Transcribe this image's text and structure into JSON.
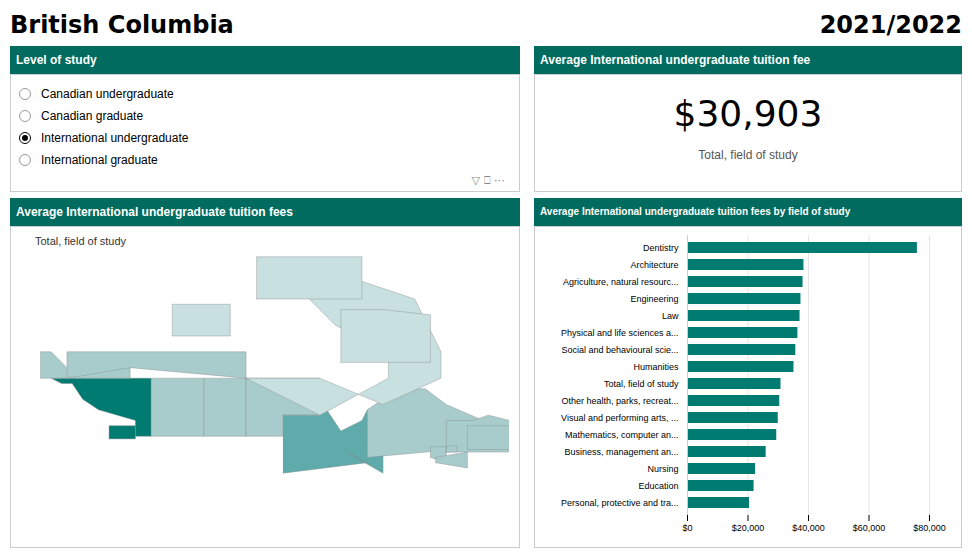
{
  "chart_data": [
    {
      "type": "header",
      "title": "British Columbia",
      "subtitle": "2021/2022"
    },
    {
      "type": "radio",
      "title": "Level of study",
      "categories": [
        "Canadian undergraduate",
        "Canadian graduate",
        "International undergraduate",
        "International graduate"
      ],
      "colors": [
        "#ffffff",
        "#ffffff",
        "#000000",
        "#ffffff"
      ],
      "annotations": [
        "▽  ⎕  ⋯"
      ]
    },
    {
      "type": "kpi",
      "title": "Average International undergraduate tuition fee",
      "values": [
        30903
      ],
      "value_labels": [
        "$30,903"
      ],
      "data_labels": true,
      "annotations": [
        "Total, field of study"
      ]
    },
    {
      "type": "map",
      "title": "Average International undergraduate tuition fees",
      "annotations": [
        "Total, field of study"
      ],
      "tick_labels": false,
      "xlim": [
        -145,
        -52
      ],
      "ylim": [
        41,
        84
      ],
      "series": [
        {
          "color": "#007B72",
          "x": [
            -139,
            -120,
            -120,
            -123,
            -123,
            -130,
            -133,
            -135,
            -137,
            -139
          ],
          "values": [
            60,
            60,
            49,
            49,
            52,
            54,
            56,
            59,
            59,
            60
          ]
        },
        {
          "color": "#A8CCCC",
          "x": [
            -120,
            -110,
            -110,
            -120,
            -120
          ],
          "values": [
            49,
            49,
            60,
            60,
            49
          ]
        },
        {
          "color": "#A8CCCC",
          "x": [
            -110,
            -102,
            -102,
            -110,
            -110
          ],
          "values": [
            49,
            49,
            60,
            60,
            49
          ]
        },
        {
          "color": "#A8CCCC",
          "x": [
            -102,
            -95,
            -95,
            -88,
            -88,
            -102,
            -102
          ],
          "values": [
            49,
            49,
            53,
            53,
            60,
            60,
            49
          ]
        },
        {
          "color": "#5FAAAA",
          "x": [
            -95,
            -88,
            -88,
            -84,
            -80,
            -79,
            -76,
            -76,
            -83,
            -79,
            -95
          ],
          "values": [
            53,
            53,
            56,
            50,
            52,
            54,
            46,
            42,
            46,
            44,
            42
          ]
        },
        {
          "color": "#A8CCCC",
          "x": [
            -79,
            -79,
            -73,
            -68,
            -64,
            -57,
            -57,
            -79
          ],
          "values": [
            45,
            54,
            58,
            58,
            55,
            52,
            47,
            45
          ]
        },
        {
          "color": "#A8CCCC",
          "x": [
            -67,
            -64,
            -64,
            -67,
            -67
          ],
          "values": [
            45,
            44,
            47,
            47,
            45
          ]
        },
        {
          "color": "#A8CCCC",
          "x": [
            -66,
            -60,
            -60,
            -66,
            -66
          ],
          "values": [
            44,
            43,
            46,
            45,
            44
          ]
        },
        {
          "color": "#A8CCCC",
          "x": [
            -64,
            -52,
            -52,
            -56,
            -59,
            -64,
            -64
          ],
          "values": [
            46,
            46,
            52,
            53,
            52,
            52,
            46
          ]
        },
        {
          "color": "#A8CCCC",
          "x": [
            -141,
            -124,
            -124,
            -136,
            -139,
            -141,
            -141
          ],
          "values": [
            60,
            60,
            62,
            62,
            65,
            65,
            60
          ]
        },
        {
          "color": "#A8CCCC",
          "x": [
            -136,
            -124,
            -124,
            -102,
            -102,
            -136,
            -136
          ],
          "values": [
            60,
            62,
            62,
            60,
            65,
            65,
            60
          ]
        },
        {
          "color": "#C8E0E0",
          "x": [
            -102,
            -88,
            -76,
            -65,
            -65,
            -70,
            -85,
            -90,
            -85,
            -75,
            -75,
            -88,
            -102,
            -102
          ],
          "values": [
            60,
            60,
            55,
            60,
            65,
            75,
            80,
            75,
            70,
            65,
            60,
            53,
            60,
            60
          ]
        },
        {
          "color": "#007B72",
          "x": [
            -128,
            -123,
            -123,
            -128,
            -128
          ],
          "values": [
            48.5,
            48.5,
            51,
            51,
            48.5
          ]
        },
        {
          "color": "#C8E0E0",
          "x": [
            -116,
            -105,
            -105,
            -116,
            -116
          ],
          "values": [
            68,
            68,
            74,
            74,
            68
          ]
        },
        {
          "color": "#C8E0E0",
          "x": [
            -84,
            -67,
            -67,
            -76,
            -84,
            -84
          ],
          "values": [
            63,
            63,
            72,
            73,
            73,
            63
          ]
        },
        {
          "color": "#C8E0E0",
          "x": [
            -100,
            -80,
            -80,
            -100,
            -100
          ],
          "values": [
            75,
            75,
            83,
            83,
            75
          ]
        },
        {
          "color": "#A8CCCC",
          "x": [
            -64,
            -62,
            -62,
            -64,
            -64
          ],
          "values": [
            46,
            46,
            47.2,
            47.2,
            46
          ]
        },
        {
          "color": "#A8CCCC",
          "x": [
            -60,
            -52,
            -52,
            -60,
            -60
          ],
          "values": [
            46.5,
            46.5,
            51,
            51,
            46.5
          ]
        }
      ]
    },
    {
      "type": "bar",
      "orientation": "horizontal",
      "title": "Average International undergraduate tuition fees by field of study",
      "categories": [
        "Dentistry",
        "Architecture",
        "Agriculture, natural resourc...",
        "Engineering",
        "Law",
        "Physical and life sciences a...",
        "Social and behavioural scie...",
        "Humanities",
        "Total, field of study",
        "Other health, parks, recreat...",
        "Visual and performing arts, ...",
        "Mathematics, computer an...",
        "Business, management an...",
        "Nursing",
        "Education",
        "Personal, protective and tra..."
      ],
      "values": [
        76000,
        38500,
        38200,
        37500,
        37200,
        36500,
        35800,
        35200,
        30903,
        30500,
        30000,
        29500,
        26000,
        22500,
        22000,
        20500
      ],
      "color": "#007B72",
      "xlim": [
        0,
        80000
      ],
      "xticks": [
        {
          "value": 0,
          "label": "$0"
        },
        {
          "value": 20000,
          "label": "$20,000"
        },
        {
          "value": 40000,
          "label": "$40,000"
        },
        {
          "value": 60000,
          "label": "$60,000"
        },
        {
          "value": 80000,
          "label": "$80,000"
        }
      ],
      "grid": true
    }
  ]
}
